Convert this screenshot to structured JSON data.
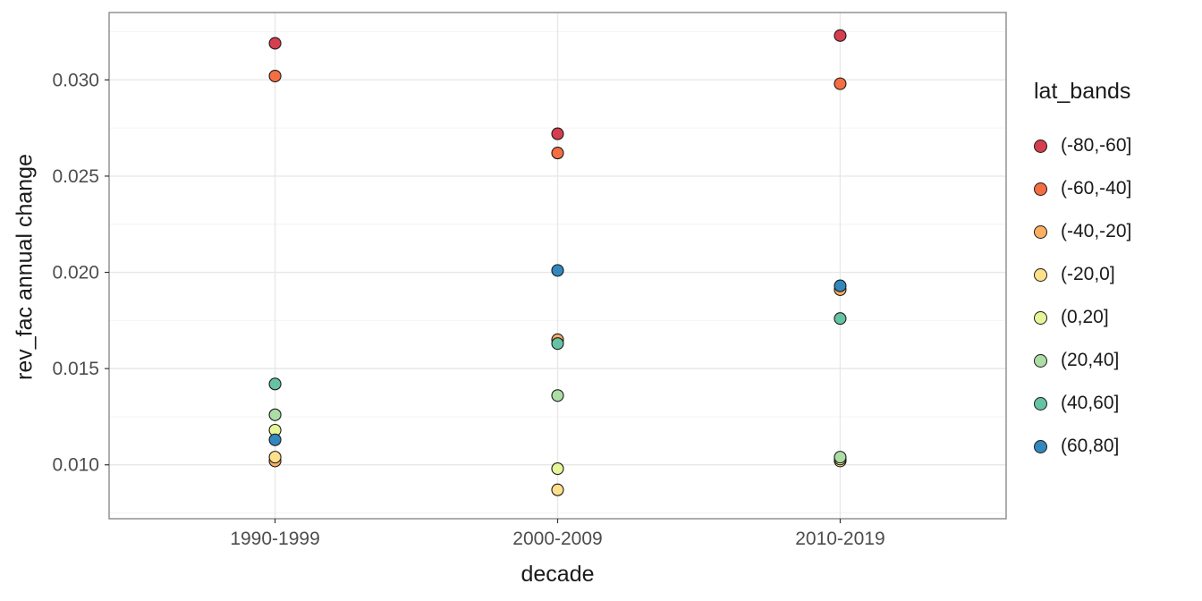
{
  "chart_data": {
    "type": "scatter",
    "title": "",
    "xlabel": "decade",
    "ylabel": "rev_fac annual change",
    "legend_title": "lat_bands",
    "legend_position": "right",
    "grid": true,
    "categories": [
      "1990-1999",
      "2000-2009",
      "2010-2019"
    ],
    "yticks": [
      0.01,
      0.015,
      0.02,
      0.025,
      0.03
    ],
    "ylim": [
      0.0072,
      0.0335
    ],
    "series": [
      {
        "name": "(-80,-60]",
        "color": "#d53e4f",
        "values": [
          0.0319,
          0.0272,
          0.0323
        ]
      },
      {
        "name": "(-60,-40]",
        "color": "#f46d43",
        "values": [
          0.0302,
          0.0262,
          0.0298
        ]
      },
      {
        "name": "(-40,-20]",
        "color": "#fdae61",
        "values": [
          0.0102,
          0.0165,
          0.0191
        ]
      },
      {
        "name": "(-20,0]",
        "color": "#fee08b",
        "values": [
          0.0104,
          0.0087,
          0.0102
        ]
      },
      {
        "name": "(0,20]",
        "color": "#e6f598",
        "values": [
          0.0118,
          0.0098,
          0.0103
        ]
      },
      {
        "name": "(20,40]",
        "color": "#abdda4",
        "values": [
          0.0126,
          0.0136,
          0.0104
        ]
      },
      {
        "name": "(40,60]",
        "color": "#66c2a5",
        "values": [
          0.0142,
          0.0163,
          0.0176
        ]
      },
      {
        "name": "(60,80]",
        "color": "#3288bd",
        "values": [
          0.0113,
          0.0201,
          0.0193
        ]
      }
    ]
  }
}
